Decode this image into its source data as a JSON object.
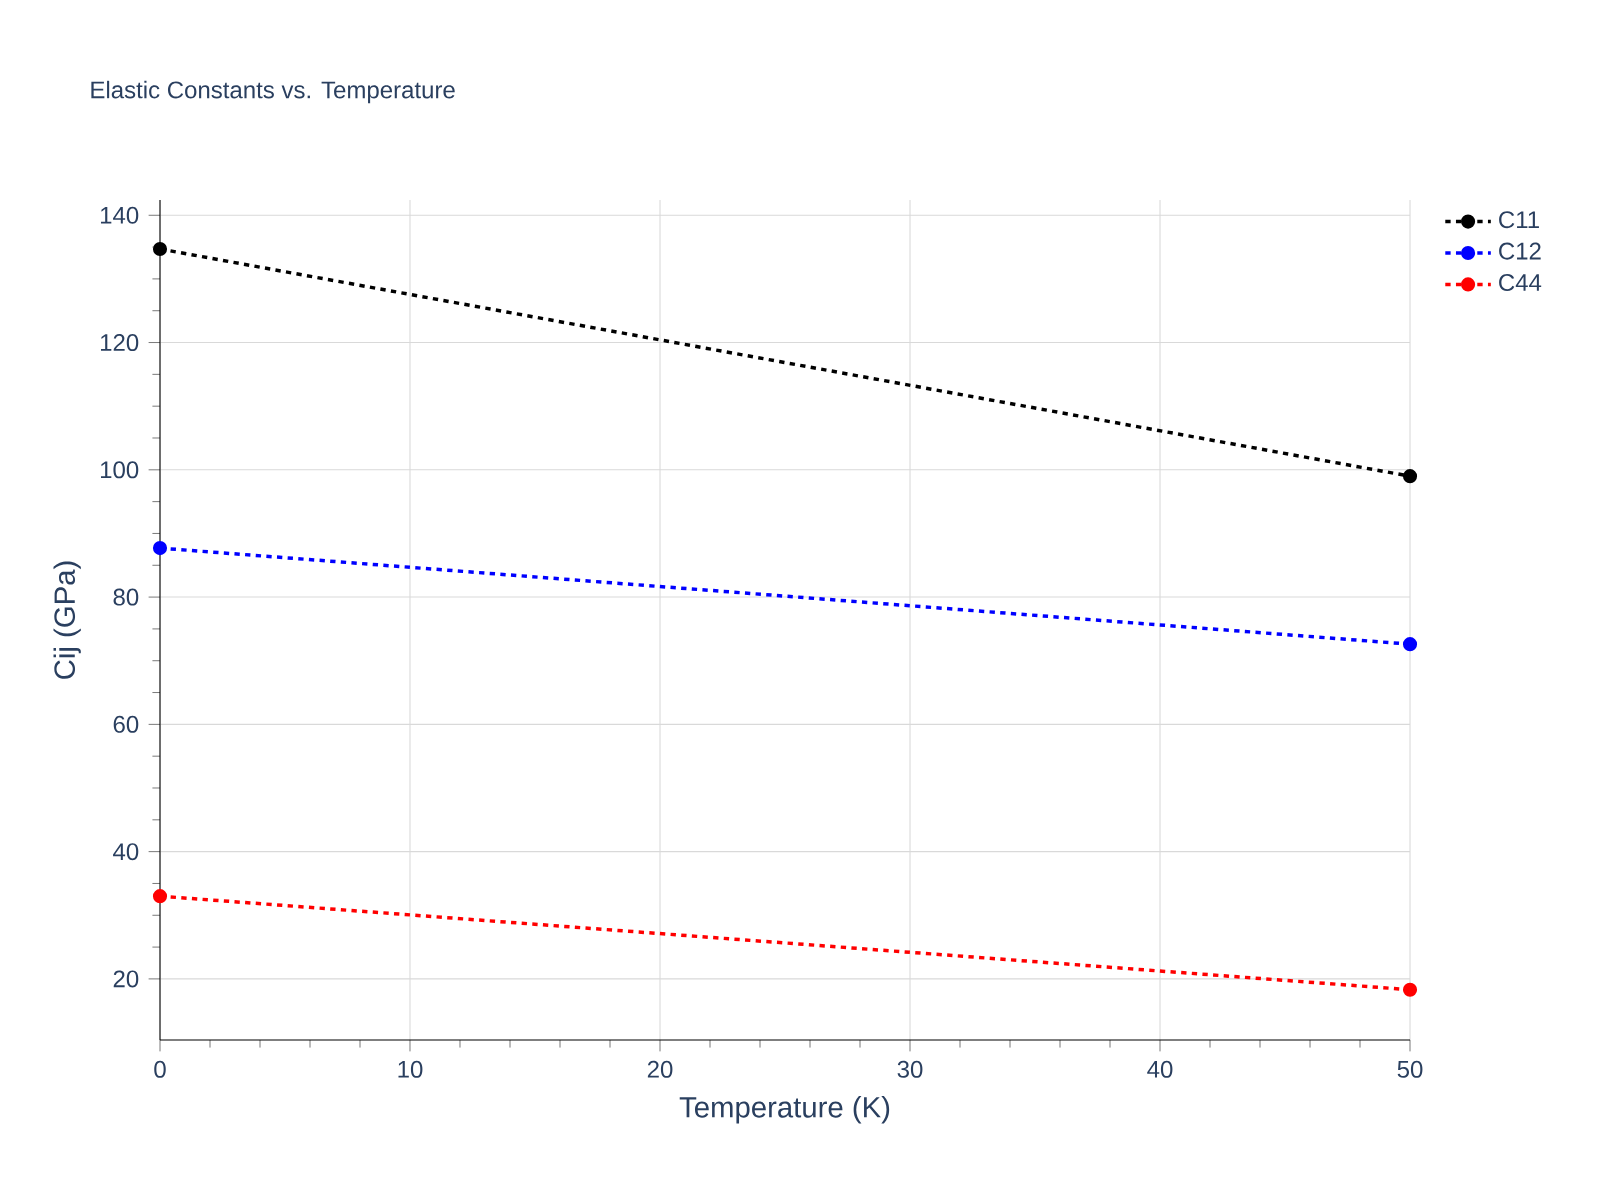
{
  "chart_data": {
    "type": "line",
    "title": "Elastic Constants vs. Temperature",
    "xlabel": "Temperature (K)",
    "ylabel": "Cij (GPa)",
    "x": [
      0,
      50
    ],
    "series": [
      {
        "name": "C11",
        "color": "#000000",
        "values": [
          134.7,
          99.0
        ]
      },
      {
        "name": "C12",
        "color": "#0000ff",
        "values": [
          87.7,
          72.6
        ]
      },
      {
        "name": "C44",
        "color": "#ff0000",
        "values": [
          33.0,
          18.3
        ]
      }
    ],
    "xlim": [
      0,
      50
    ],
    "xticks": [
      0,
      10,
      20,
      30,
      40,
      50
    ],
    "ylim": [
      10.4,
      142.4
    ],
    "yticks": [
      20,
      40,
      60,
      80,
      100,
      120,
      140
    ],
    "grid": true,
    "legend": "top right",
    "marker": "circle",
    "line_style": "dotted"
  }
}
